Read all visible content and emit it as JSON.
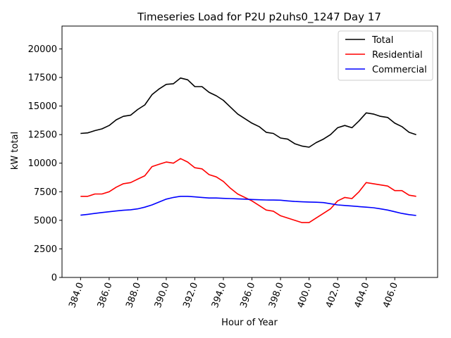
{
  "chart_data": {
    "type": "line",
    "title": "Timeseries Load for P2U p2uhs0_1247  Day 17",
    "xlabel": "Hour of Year",
    "ylabel": "kW total",
    "xlim": [
      382.7,
      409.0
    ],
    "ylim": [
      0,
      22000
    ],
    "xticks": [
      384,
      386,
      388,
      390,
      392,
      394,
      396,
      398,
      400,
      402,
      404,
      406
    ],
    "xtick_labels": [
      "384.0",
      "386.0",
      "388.0",
      "390.0",
      "392.0",
      "394.0",
      "396.0",
      "398.0",
      "400.0",
      "402.0",
      "404.0",
      "406.0"
    ],
    "yticks": [
      0,
      2500,
      5000,
      7500,
      10000,
      12500,
      15000,
      17500,
      20000
    ],
    "ytick_labels": [
      "0",
      "2500",
      "5000",
      "7500",
      "10000",
      "12500",
      "15000",
      "17500",
      "20000"
    ],
    "legend_position": "top-right",
    "x": [
      384.0,
      384.5,
      385.0,
      385.5,
      386.0,
      386.5,
      387.0,
      387.5,
      388.0,
      388.5,
      389.0,
      389.5,
      390.0,
      390.5,
      391.0,
      391.5,
      392.0,
      392.5,
      393.0,
      393.5,
      394.0,
      394.5,
      395.0,
      395.5,
      396.0,
      396.5,
      397.0,
      397.5,
      398.0,
      398.5,
      399.0,
      399.5,
      400.0,
      400.5,
      401.0,
      401.5,
      402.0,
      402.5,
      403.0,
      403.5,
      404.0,
      404.5,
      405.0,
      405.5,
      406.0,
      406.5,
      407.0,
      407.5
    ],
    "series": [
      {
        "name": "Total",
        "color": "#000000",
        "values": [
          12600,
          12650,
          12850,
          13000,
          13300,
          13800,
          14100,
          14200,
          14700,
          15100,
          16000,
          16500,
          16900,
          16950,
          17450,
          17300,
          16700,
          16700,
          16200,
          15900,
          15500,
          14900,
          14300,
          13900,
          13500,
          13200,
          12700,
          12600,
          12200,
          12100,
          11700,
          11500,
          11400,
          11800,
          12100,
          12500,
          13100,
          13300,
          13100,
          13700,
          14400,
          14300,
          14100,
          14000,
          13500,
          13200,
          12700,
          12500
        ]
      },
      {
        "name": "Residential",
        "color": "#ff0000",
        "values": [
          7100,
          7100,
          7300,
          7300,
          7500,
          7900,
          8200,
          8300,
          8600,
          8900,
          9700,
          9900,
          10100,
          10000,
          10400,
          10100,
          9600,
          9500,
          9000,
          8800,
          8400,
          7800,
          7300,
          7000,
          6700,
          6300,
          5900,
          5800,
          5400,
          5200,
          5000,
          4800,
          4800,
          5200,
          5600,
          6000,
          6700,
          7000,
          6900,
          7500,
          8300,
          8200,
          8100,
          8000,
          7600,
          7600,
          7200,
          7100
        ]
      },
      {
        "name": "Commercial",
        "color": "#0000ff",
        "values": [
          5450,
          5520,
          5600,
          5680,
          5750,
          5820,
          5880,
          5920,
          6000,
          6150,
          6350,
          6600,
          6850,
          7000,
          7100,
          7100,
          7050,
          7000,
          6950,
          6950,
          6920,
          6900,
          6880,
          6850,
          6820,
          6800,
          6780,
          6770,
          6760,
          6700,
          6650,
          6620,
          6600,
          6580,
          6550,
          6450,
          6350,
          6300,
          6250,
          6200,
          6150,
          6100,
          6000,
          5900,
          5750,
          5600,
          5500,
          5420
        ]
      }
    ]
  }
}
